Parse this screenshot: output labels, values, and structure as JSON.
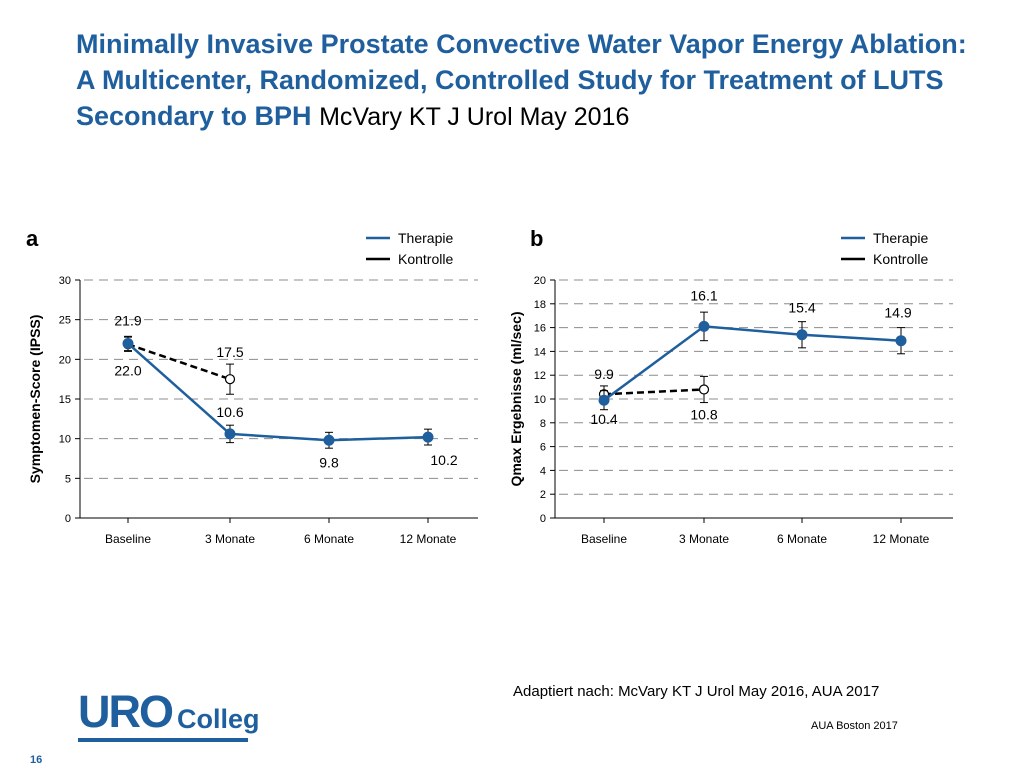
{
  "slide": {
    "title": "Minimally Invasive Prostate Convective Water Vapor Energy Ablation: A Multicenter, Randomized, Controlled Study for Treatment of LUTS Secondary to BPH",
    "citation": "McVary KT J Urol May 2016",
    "source_note": "Adaptiert nach: McVary KT J Urol May 2016, AUA 2017",
    "conference": "AUA Boston 2017",
    "page_number": "16",
    "logo": {
      "part1": "URO",
      "part2": "Colleg"
    }
  },
  "colors": {
    "therapie": "#1f5f9e",
    "kontrolle": "#000000",
    "title": "#1f5f9e",
    "grid": "#8c8c8c"
  },
  "chart_data": [
    {
      "panel": "a",
      "type": "line",
      "ylabel": "Symptomen-Score (IPSS)",
      "xlabel": "",
      "categories": [
        "Baseline",
        "3 Monate",
        "6 Monate",
        "12 Monate"
      ],
      "ylim": [
        0,
        30
      ],
      "yticks": [
        0,
        5,
        10,
        15,
        20,
        25,
        30
      ],
      "grid": true,
      "legend_position": "top-right",
      "series": [
        {
          "name": "Therapie",
          "style": "solid",
          "marker": "filled-circle",
          "values": [
            22.0,
            10.6,
            9.8,
            10.2
          ],
          "error": [
            0.9,
            1.1,
            1.0,
            1.0
          ],
          "labels": [
            "22.0",
            "10.6",
            "9.8",
            "10.2"
          ]
        },
        {
          "name": "Kontrolle",
          "style": "dashed",
          "marker": "open-circle",
          "values": [
            21.9,
            17.5,
            null,
            null
          ],
          "error": [
            0.9,
            1.9,
            null,
            null
          ],
          "labels": [
            "21.9",
            "17.5",
            null,
            null
          ]
        }
      ]
    },
    {
      "panel": "b",
      "type": "line",
      "ylabel": "Qmax Ergebnisse (ml/sec)",
      "xlabel": "",
      "categories": [
        "Baseline",
        "3 Monate",
        "6 Monate",
        "12 Monate"
      ],
      "ylim": [
        0,
        20
      ],
      "yticks": [
        0,
        2,
        4,
        6,
        8,
        10,
        12,
        14,
        16,
        18,
        20
      ],
      "grid": true,
      "legend_position": "top-right",
      "series": [
        {
          "name": "Therapie",
          "style": "solid",
          "marker": "filled-circle",
          "values": [
            9.9,
            16.1,
            15.4,
            14.9
          ],
          "error": [
            0.8,
            1.2,
            1.1,
            1.1
          ],
          "labels": [
            "9.9",
            "16.1",
            "15.4",
            "14.9"
          ]
        },
        {
          "name": "Kontrolle",
          "style": "dashed",
          "marker": "open-circle",
          "values": [
            10.4,
            10.8,
            null,
            null
          ],
          "error": [
            0.7,
            1.1,
            null,
            null
          ],
          "labels": [
            "10.4",
            "10.8",
            null,
            null
          ]
        }
      ]
    }
  ]
}
